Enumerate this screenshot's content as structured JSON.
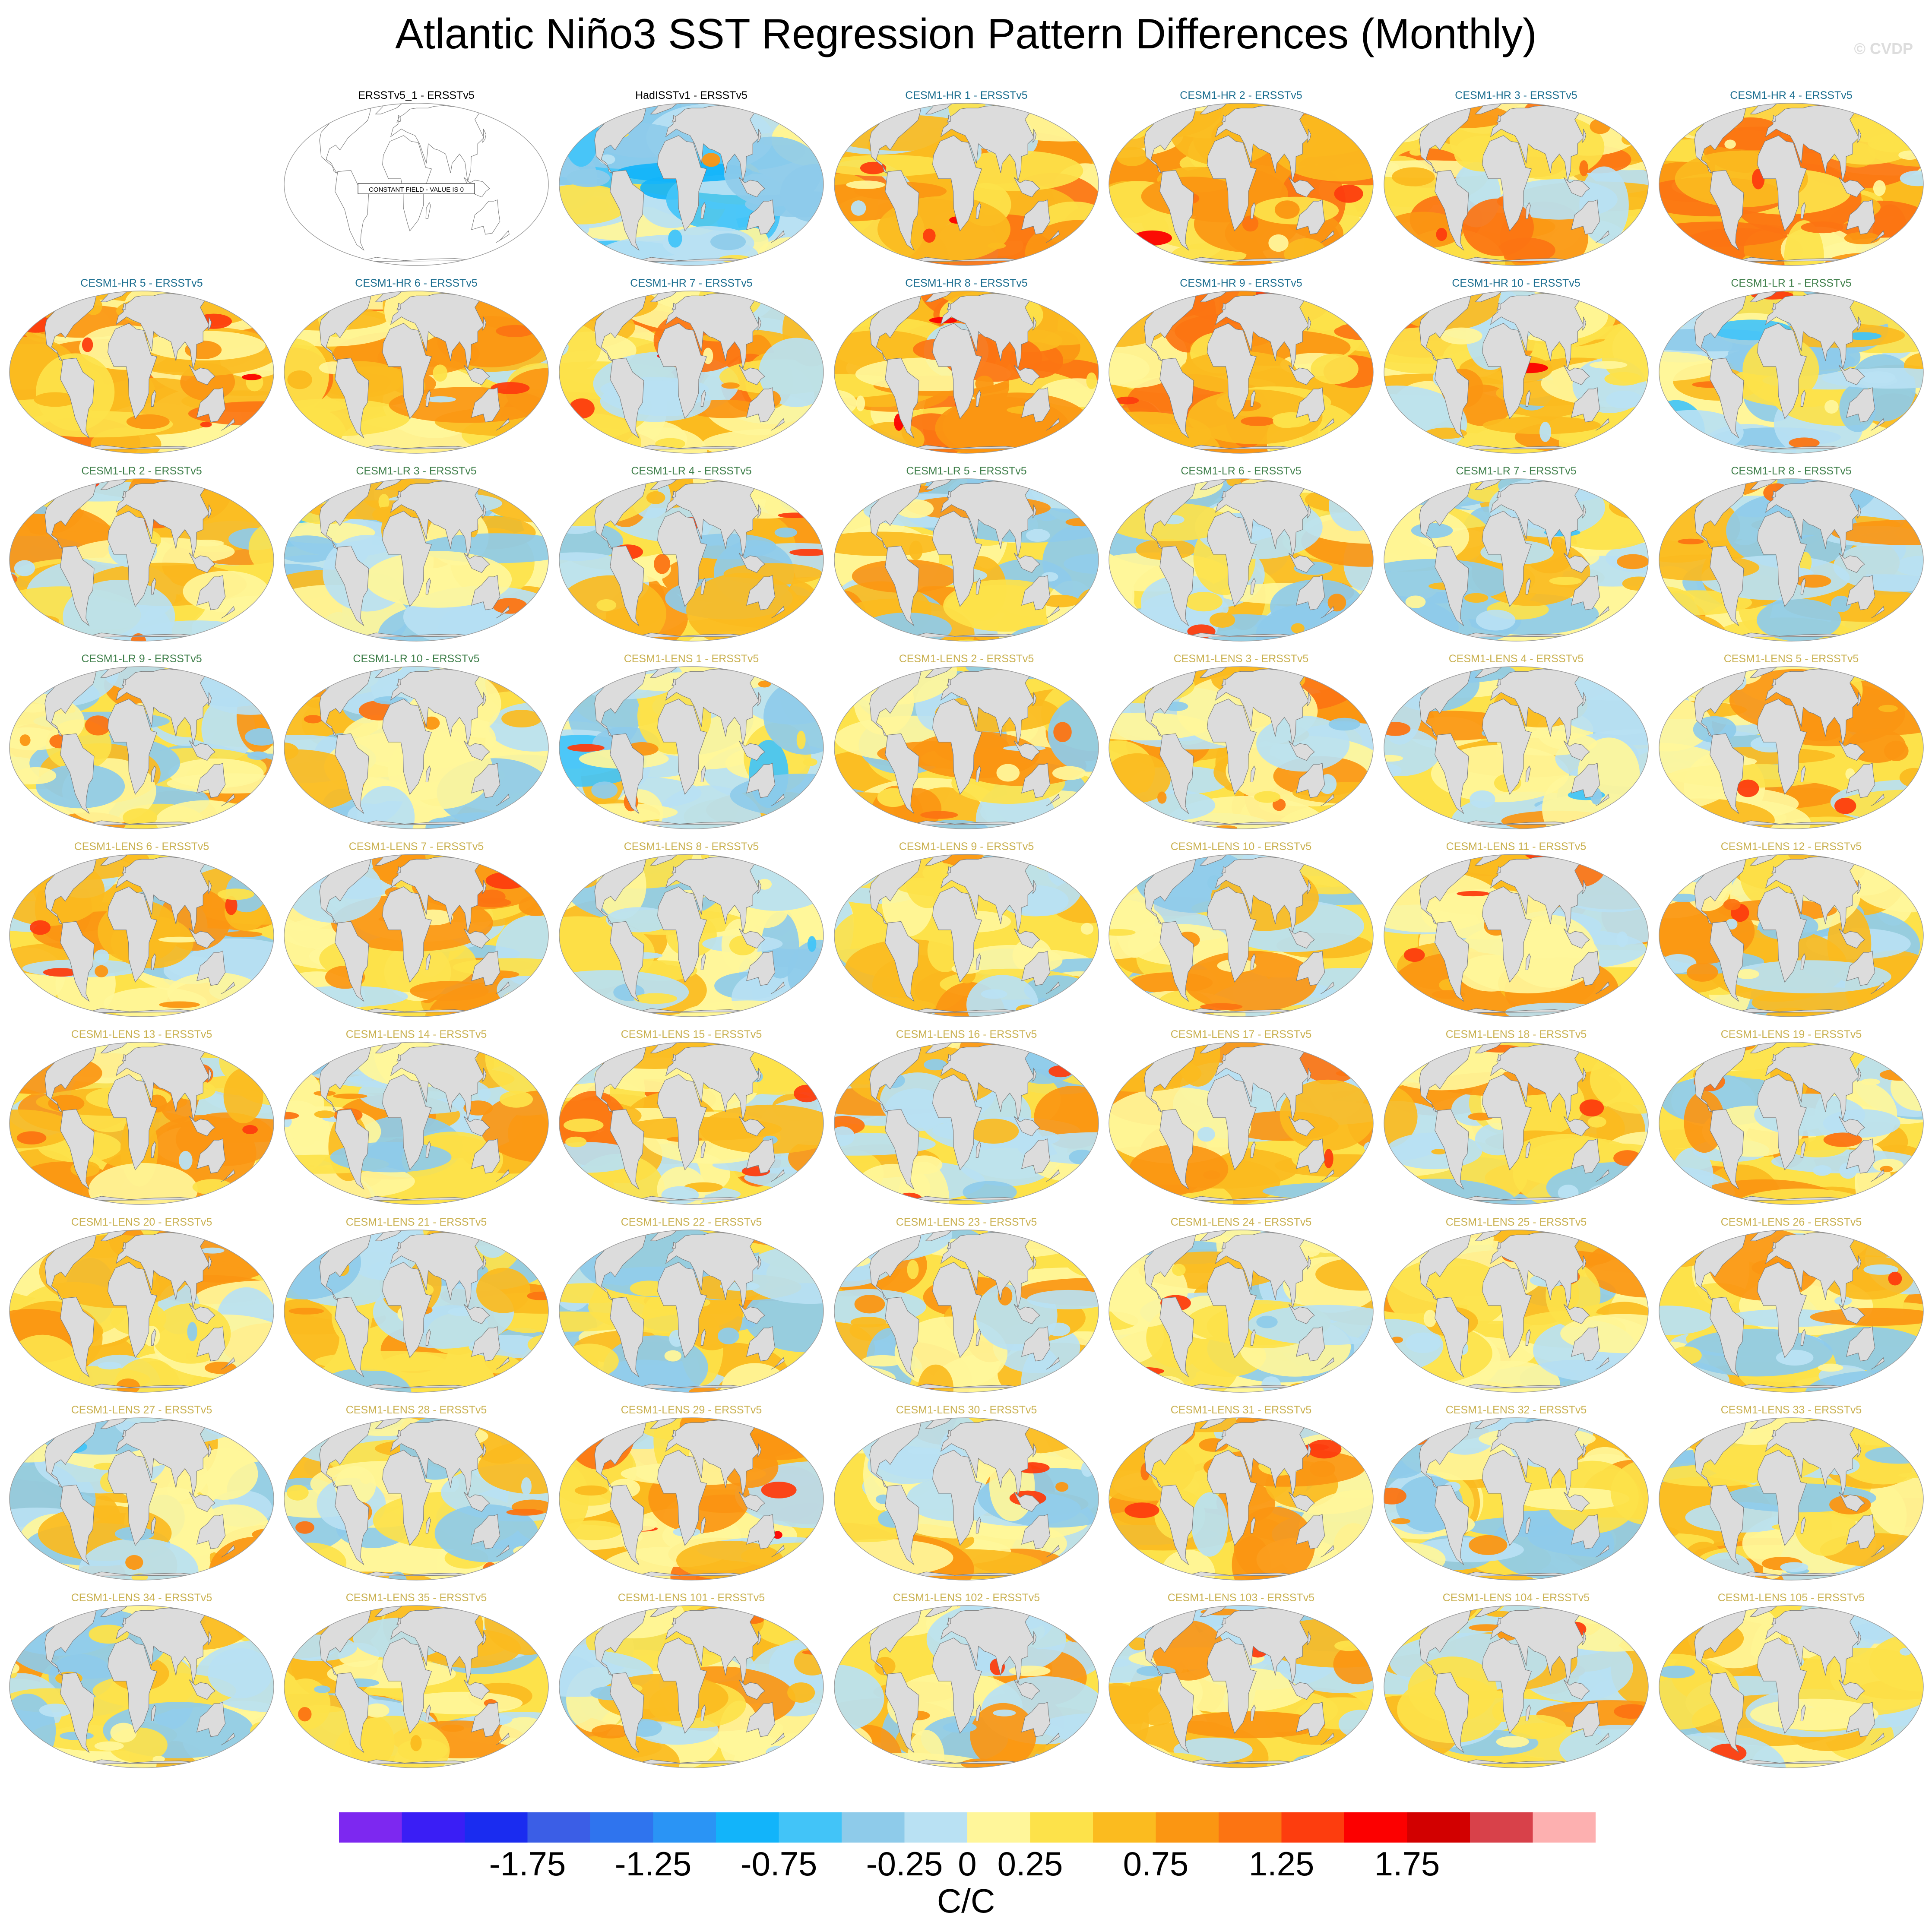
{
  "title": "Atlantic Niño3 SST Regression Pattern Differences (Monthly)",
  "watermark": "© CVDP",
  "colors": {
    "obs_title": "#000000",
    "hr_title": "#1a6d8f",
    "lr_title": "#3f7f4a",
    "lens_title": "#c9b04f",
    "land": "#dcdcdc",
    "coast": "#7a7a7a"
  },
  "palette": [
    "#7d28f0",
    "#3a1ef5",
    "#1a2cf0",
    "#3b5ee6",
    "#2f74ee",
    "#2a94f5",
    "#12b4fa",
    "#42c4f8",
    "#8ecbea",
    "#b9e1f3",
    "#fff69a",
    "#fde24a",
    "#fbbb1f",
    "#fb9612",
    "#fc7412",
    "#fd3d0e",
    "#fc0000",
    "#d20000",
    "#d8414a",
    "#fdb0b0"
  ],
  "colorbar": {
    "ticks": [
      "-1.75",
      "-1.25",
      "-0.75",
      "-0.25",
      "0",
      "0.25",
      "0.75",
      "1.25",
      "1.75"
    ],
    "unit": "C/C"
  },
  "constant_field_note": "CONSTANT FIELD - VALUE IS 0",
  "panels": [
    {
      "title": "ERSSTv5_1 - ERSSTv5",
      "group": "obs",
      "constant": true
    },
    {
      "title": "HadISSTv1 - ERSSTv5",
      "group": "obs",
      "level": -0.1
    },
    {
      "title": "CESM1-HR 1 - ERSSTv5",
      "group": "hr",
      "level": 0.55
    },
    {
      "title": "CESM1-HR 2 - ERSSTv5",
      "group": "hr",
      "level": 0.75
    },
    {
      "title": "CESM1-HR 3 - ERSSTv5",
      "group": "hr",
      "level": 0.6
    },
    {
      "title": "CESM1-HR 4 - ERSSTv5",
      "group": "hr",
      "level": 0.7
    },
    {
      "title": "CESM1-HR 5 - ERSSTv5",
      "group": "hr",
      "level": 0.65
    },
    {
      "title": "CESM1-HR 6 - ERSSTv5",
      "group": "hr",
      "level": 0.65
    },
    {
      "title": "CESM1-HR 7 - ERSSTv5",
      "group": "hr",
      "level": 0.6
    },
    {
      "title": "CESM1-HR 8 - ERSSTv5",
      "group": "hr",
      "level": 0.6
    },
    {
      "title": "CESM1-HR 9 - ERSSTv5",
      "group": "hr",
      "level": 0.7
    },
    {
      "title": "CESM1-HR 10 - ERSSTv5",
      "group": "hr",
      "level": 0.45
    },
    {
      "title": "CESM1-LR 1 - ERSSTv5",
      "group": "lr",
      "level": 0.15
    },
    {
      "title": "CESM1-LR 2 - ERSSTv5",
      "group": "lr",
      "level": 0.3
    },
    {
      "title": "CESM1-LR 3 - ERSSTv5",
      "group": "lr",
      "level": 0.15
    },
    {
      "title": "CESM1-LR 4 - ERSSTv5",
      "group": "lr",
      "level": 0.3
    },
    {
      "title": "CESM1-LR 5 - ERSSTv5",
      "group": "lr",
      "level": 0.25
    },
    {
      "title": "CESM1-LR 6 - ERSSTv5",
      "group": "lr",
      "level": 0.2
    },
    {
      "title": "CESM1-LR 7 - ERSSTv5",
      "group": "lr",
      "level": 0.2
    },
    {
      "title": "CESM1-LR 8 - ERSSTv5",
      "group": "lr",
      "level": 0.25
    },
    {
      "title": "CESM1-LR 9 - ERSSTv5",
      "group": "lr",
      "level": 0.3
    },
    {
      "title": "CESM1-LR 10 - ERSSTv5",
      "group": "lr",
      "level": 0.2
    },
    {
      "title": "CESM1-LENS 1 - ERSSTv5",
      "group": "lens",
      "level": 0.15
    },
    {
      "title": "CESM1-LENS 2 - ERSSTv5",
      "group": "lens",
      "level": 0.35
    },
    {
      "title": "CESM1-LENS 3 - ERSSTv5",
      "group": "lens",
      "level": 0.45
    },
    {
      "title": "CESM1-LENS 4 - ERSSTv5",
      "group": "lens",
      "level": 0.25
    },
    {
      "title": "CESM1-LENS 5 - ERSSTv5",
      "group": "lens",
      "level": 0.4
    },
    {
      "title": "CESM1-LENS 6 - ERSSTv5",
      "group": "lens",
      "level": 0.3
    },
    {
      "title": "CESM1-LENS 7 - ERSSTv5",
      "group": "lens",
      "level": 0.35
    },
    {
      "title": "CESM1-LENS 8 - ERSSTv5",
      "group": "lens",
      "level": 0.2
    },
    {
      "title": "CESM1-LENS 9 - ERSSTv5",
      "group": "lens",
      "level": 0.3
    },
    {
      "title": "CESM1-LENS 10 - ERSSTv5",
      "group": "lens",
      "level": 0.3
    },
    {
      "title": "CESM1-LENS 11 - ERSSTv5",
      "group": "lens",
      "level": 0.45
    },
    {
      "title": "CESM1-LENS 12 - ERSSTv5",
      "group": "lens",
      "level": 0.25
    },
    {
      "title": "CESM1-LENS 13 - ERSSTv5",
      "group": "lens",
      "level": 0.4
    },
    {
      "title": "CESM1-LENS 14 - ERSSTv5",
      "group": "lens",
      "level": 0.4
    },
    {
      "title": "CESM1-LENS 15 - ERSSTv5",
      "group": "lens",
      "level": 0.45
    },
    {
      "title": "CESM1-LENS 16 - ERSSTv5",
      "group": "lens",
      "level": 0.25
    },
    {
      "title": "CESM1-LENS 17 - ERSSTv5",
      "group": "lens",
      "level": 0.45
    },
    {
      "title": "CESM1-LENS 18 - ERSSTv5",
      "group": "lens",
      "level": 0.3
    },
    {
      "title": "CESM1-LENS 19 - ERSSTv5",
      "group": "lens",
      "level": 0.35
    },
    {
      "title": "CESM1-LENS 20 - ERSSTv5",
      "group": "lens",
      "level": 0.4
    },
    {
      "title": "CESM1-LENS 21 - ERSSTv5",
      "group": "lens",
      "level": 0.25
    },
    {
      "title": "CESM1-LENS 22 - ERSSTv5",
      "group": "lens",
      "level": 0.3
    },
    {
      "title": "CESM1-LENS 23 - ERSSTv5",
      "group": "lens",
      "level": 0.35
    },
    {
      "title": "CESM1-LENS 24 - ERSSTv5",
      "group": "lens",
      "level": 0.2
    },
    {
      "title": "CESM1-LENS 25 - ERSSTv5",
      "group": "lens",
      "level": 0.35
    },
    {
      "title": "CESM1-LENS 26 - ERSSTv5",
      "group": "lens",
      "level": 0.35
    },
    {
      "title": "CESM1-LENS 27 - ERSSTv5",
      "group": "lens",
      "level": 0.2
    },
    {
      "title": "CESM1-LENS 28 - ERSSTv5",
      "group": "lens",
      "level": 0.2
    },
    {
      "title": "CESM1-LENS 29 - ERSSTv5",
      "group": "lens",
      "level": 0.5
    },
    {
      "title": "CESM1-LENS 30 - ERSSTv5",
      "group": "lens",
      "level": 0.3
    },
    {
      "title": "CESM1-LENS 31 - ERSSTv5",
      "group": "lens",
      "level": 0.4
    },
    {
      "title": "CESM1-LENS 32 - ERSSTv5",
      "group": "lens",
      "level": 0.25
    },
    {
      "title": "CESM1-LENS 33 - ERSSTv5",
      "group": "lens",
      "level": 0.3
    },
    {
      "title": "CESM1-LENS 34 - ERSSTv5",
      "group": "lens",
      "level": 0.35
    },
    {
      "title": "CESM1-LENS 35 - ERSSTv5",
      "group": "lens",
      "level": 0.35
    },
    {
      "title": "CESM1-LENS 101 - ERSSTv5",
      "group": "lens",
      "level": 0.3
    },
    {
      "title": "CESM1-LENS 102 - ERSSTv5",
      "group": "lens",
      "level": 0.4
    },
    {
      "title": "CESM1-LENS 103 - ERSSTv5",
      "group": "lens",
      "level": 0.35
    },
    {
      "title": "CESM1-LENS 104 - ERSSTv5",
      "group": "lens",
      "level": 0.3
    },
    {
      "title": "CESM1-LENS 105 - ERSSTv5",
      "group": "lens",
      "level": 0.3
    }
  ]
}
